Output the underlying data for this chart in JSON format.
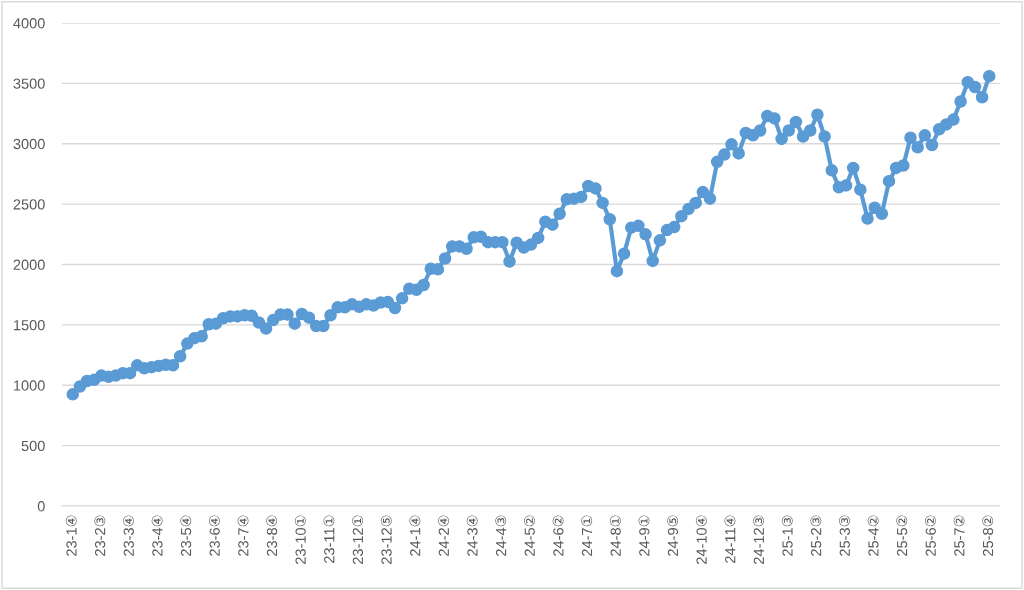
{
  "chart_data": {
    "type": "line",
    "marker": "circle",
    "line_style": "solid",
    "grid": "y",
    "ylim": [
      0,
      4000
    ],
    "yticks": [
      0,
      500,
      1000,
      1500,
      2000,
      2500,
      3000,
      3500,
      4000
    ],
    "categories": [
      "23-1④",
      null,
      null,
      null,
      "23-2③",
      null,
      null,
      null,
      "23-3④",
      null,
      null,
      null,
      "23-4④",
      null,
      null,
      null,
      "23-5④",
      null,
      null,
      null,
      "23-6④",
      null,
      null,
      null,
      "23-7④",
      null,
      null,
      null,
      "23-8④",
      null,
      null,
      null,
      "23-10①",
      null,
      null,
      null,
      "23-11①",
      null,
      null,
      null,
      "23-12①",
      null,
      null,
      null,
      "23-12⑤",
      null,
      null,
      null,
      "24-1④",
      null,
      null,
      null,
      "24-2④",
      null,
      null,
      null,
      "24-3④",
      null,
      null,
      null,
      "24-4③",
      null,
      null,
      null,
      "24-5②",
      null,
      null,
      null,
      "24-6②",
      null,
      null,
      null,
      "24-7①",
      null,
      null,
      null,
      "24-8①",
      null,
      null,
      null,
      "24-9①",
      null,
      null,
      null,
      "24-9⑤",
      null,
      null,
      null,
      "24-10④",
      null,
      null,
      null,
      "24-11④",
      null,
      null,
      null,
      "24-12③",
      null,
      null,
      null,
      "25-1③",
      null,
      null,
      null,
      "25-2③",
      null,
      null,
      null,
      "25-3③",
      null,
      null,
      null,
      "25-4②",
      null,
      null,
      null,
      "25-5②",
      null,
      null,
      null,
      "25-6②",
      null,
      null,
      null,
      "25-7②",
      null,
      null,
      null,
      "25-8②"
    ],
    "series": [
      {
        "color": "#5b9bd5",
        "values": [
          925,
          990,
          1035,
          1045,
          1080,
          1070,
          1080,
          1100,
          1100,
          1165,
          1140,
          1150,
          1160,
          1170,
          1165,
          1240,
          1345,
          1390,
          1405,
          1505,
          1510,
          1555,
          1570,
          1570,
          1580,
          1575,
          1520,
          1470,
          1540,
          1585,
          1585,
          1510,
          1590,
          1560,
          1490,
          1490,
          1580,
          1645,
          1645,
          1670,
          1650,
          1670,
          1660,
          1685,
          1690,
          1640,
          1720,
          1800,
          1790,
          1830,
          1965,
          1960,
          2050,
          2150,
          2150,
          2130,
          2225,
          2230,
          2185,
          2185,
          2185,
          2025,
          2180,
          2140,
          2165,
          2220,
          2355,
          2330,
          2420,
          2540,
          2545,
          2560,
          2650,
          2630,
          2510,
          2375,
          1945,
          2090,
          2305,
          2320,
          2250,
          2030,
          2200,
          2285,
          2310,
          2400,
          2460,
          2510,
          2600,
          2545,
          2850,
          2910,
          2995,
          2920,
          3090,
          3070,
          3110,
          3230,
          3210,
          3040,
          3110,
          3180,
          3060,
          3110,
          3240,
          3060,
          2780,
          2640,
          2655,
          2800,
          2620,
          2380,
          2470,
          2420,
          2690,
          2800,
          2820,
          3050,
          2970,
          3070,
          2990,
          3120,
          3160,
          3200,
          3350,
          3510,
          3470,
          3385,
          3560
        ]
      }
    ]
  }
}
